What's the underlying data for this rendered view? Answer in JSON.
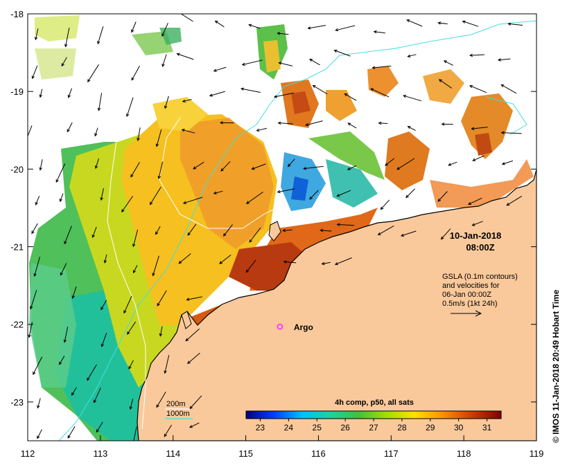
{
  "map": {
    "lon_range": [
      112,
      119
    ],
    "lat_range": [
      -23.5,
      -18
    ],
    "lon_ticks": [
      {
        "value": 112,
        "label": "112"
      },
      {
        "value": 113,
        "label": "113"
      },
      {
        "value": 114,
        "label": "114"
      },
      {
        "value": 115,
        "label": "115"
      },
      {
        "value": 116,
        "label": "116"
      },
      {
        "value": 117,
        "label": "117"
      },
      {
        "value": 118,
        "label": "118"
      },
      {
        "value": 119,
        "label": "119"
      }
    ],
    "lat_ticks": [
      {
        "value": -18,
        "label": "-18"
      },
      {
        "value": -19,
        "label": "-19"
      },
      {
        "value": -20,
        "label": "-20"
      },
      {
        "value": -21,
        "label": "-21"
      },
      {
        "value": -22,
        "label": "-22"
      },
      {
        "value": -23,
        "label": "-23"
      }
    ],
    "title_date": "10-Jan-2018",
    "title_time": "08:00Z",
    "gsla_lines": [
      "GSLA (0.1m contours)",
      "and velocities for",
      "06-Jan 00:00Z",
      "0.5m/s (1kt 24h)"
    ],
    "argo": {
      "label": "Argo",
      "lon": 115.47,
      "lat": -22.03,
      "color": "#ff33ff"
    },
    "legend": {
      "line_200": "200m",
      "line_1000": "1000m",
      "color_1000": "#33cccc",
      "color_200": "#ffffff"
    },
    "colorbar": {
      "title": "4h comp, p50, all sats",
      "min": 22.5,
      "max": 31.5,
      "ticks": [
        "23",
        "24",
        "25",
        "26",
        "27",
        "28",
        "29",
        "30",
        "31"
      ],
      "stops": [
        "#000080",
        "#0040ff",
        "#00c0ff",
        "#20d0a0",
        "#40c040",
        "#a0e000",
        "#ffe000",
        "#ff9000",
        "#d04000",
        "#800000"
      ]
    },
    "credit": "© IMOS 11-Jan-2018 20:49 Hobart Time",
    "colors": {
      "land": "#fac99b",
      "coastline": "#000000",
      "contour": "#44dddd"
    }
  }
}
